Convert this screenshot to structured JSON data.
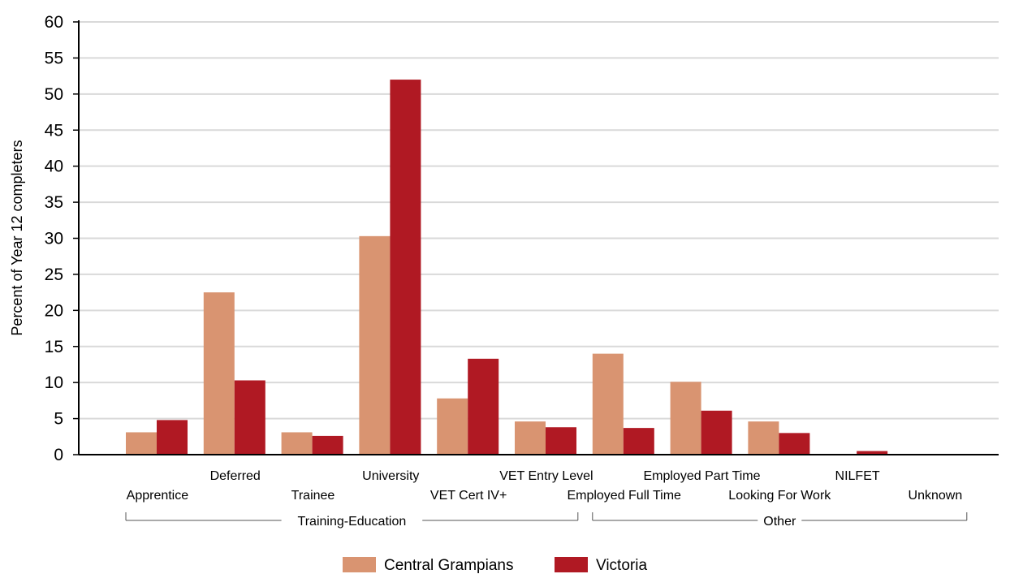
{
  "chart_data": {
    "type": "bar",
    "ylabel": "Percent of Year 12 completers",
    "ylim": [
      0,
      60
    ],
    "yticks": [
      0,
      5,
      10,
      15,
      20,
      25,
      30,
      35,
      40,
      45,
      50,
      55,
      60
    ],
    "grid": true,
    "legend_position": "bottom",
    "categories": [
      "Apprentice",
      "Deferred",
      "Trainee",
      "University",
      "VET Cert IV+",
      "VET Entry Level",
      "Employed Full Time",
      "Employed Part Time",
      "Looking For Work",
      "NILFET",
      "Unknown"
    ],
    "groups": [
      {
        "label": "Training-Education",
        "from": 0,
        "to": 5
      },
      {
        "label": "Other",
        "from": 6,
        "to": 10
      }
    ],
    "series": [
      {
        "name": "Central Grampians",
        "color": "#d99471",
        "values": [
          3.1,
          22.5,
          3.1,
          30.3,
          7.8,
          4.6,
          14.0,
          10.1,
          4.6,
          0,
          0
        ]
      },
      {
        "name": "Victoria",
        "color": "#b01923",
        "values": [
          4.8,
          10.3,
          2.6,
          52.0,
          13.3,
          3.8,
          3.7,
          6.1,
          3.0,
          0.5,
          0.1
        ]
      }
    ]
  }
}
